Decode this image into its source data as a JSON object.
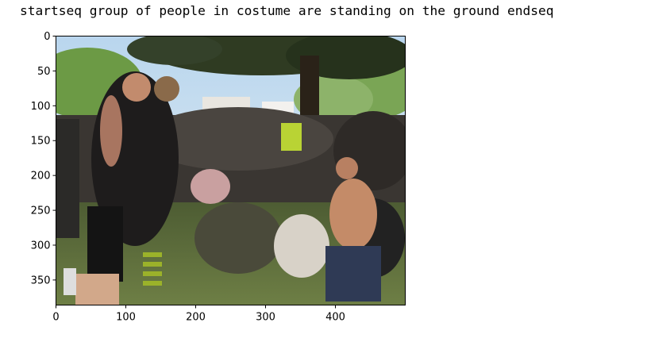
{
  "caption": "startseq group of people in costume are standing on the ground endseq",
  "image": {
    "description_icon": "photo-crowd-outdoors",
    "palette": {
      "sky": "#cfe3f3",
      "trees": "#5e8a3c",
      "dark_trees": "#2f3b22",
      "crowd": "#3a3632",
      "grass": "#56683a",
      "skin": "#c89070"
    }
  },
  "chart_data": {
    "type": "image",
    "xticks": [
      0,
      100,
      200,
      300,
      400
    ],
    "yticks": [
      0,
      50,
      100,
      150,
      200,
      250,
      300,
      350
    ],
    "xlim": [
      0,
      500
    ],
    "ylim": [
      0,
      386
    ],
    "y_inverted": true
  }
}
